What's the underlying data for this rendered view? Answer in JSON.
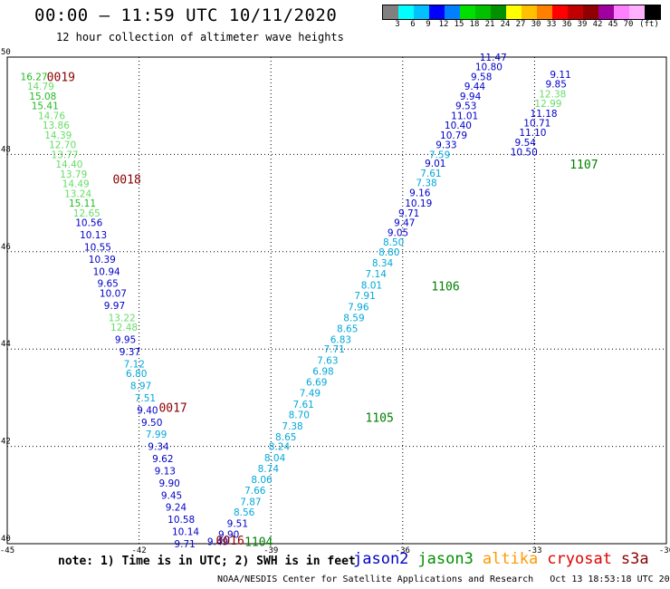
{
  "header": {
    "title": "00:00 – 11:59 UTC 10/11/2020",
    "subtitle": "12 hour collection of altimeter wave heights"
  },
  "legend": {
    "colors": [
      "#808080",
      "#00ffff",
      "#00c0ff",
      "#0000ff",
      "#0080ff",
      "#00e000",
      "#00c000",
      "#009000",
      "#ffff00",
      "#ffc000",
      "#ff8000",
      "#ff0000",
      "#c00000",
      "#900000",
      "#a000a0",
      "#ff80ff",
      "#ffb0ff",
      "#000000"
    ],
    "labels": [
      "3",
      "6",
      "9",
      "12",
      "15",
      "18",
      "21",
      "24",
      "27",
      "30",
      "33",
      "36",
      "39",
      "42",
      "45",
      "70",
      "(ft)"
    ]
  },
  "note": "note: 1) Time is in UTC; 2) SWH is in feet",
  "satellites": [
    {
      "name": "jason2",
      "color": "#0000c8"
    },
    {
      "name": "jason3",
      "color": "#009000"
    },
    {
      "name": "altika",
      "color": "#ff9900"
    },
    {
      "name": "cryosat",
      "color": "#e00000"
    },
    {
      "name": "s3a",
      "color": "#8b0000"
    }
  ],
  "footer": "NOAA/NESDIS Center for Satellite Applications and Research   Oct 13 18:53:18 UTC 2020",
  "chart_data": {
    "type": "scatter",
    "xlim": [
      -45,
      -30
    ],
    "ylim": [
      40,
      50
    ],
    "xticks": [
      -45,
      -42,
      -39,
      -36,
      -33,
      -30
    ],
    "yticks": [
      40,
      42,
      44,
      46,
      48,
      50
    ],
    "grid": true,
    "pass_labels": [
      {
        "text": "0019",
        "x": -44.1,
        "y": 49.6,
        "color": "#8b0000"
      },
      {
        "text": "0018",
        "x": -42.6,
        "y": 47.5,
        "color": "#8b0000"
      },
      {
        "text": "0017",
        "x": -41.55,
        "y": 42.8,
        "color": "#8b0000"
      },
      {
        "text": "0016",
        "x": -40.25,
        "y": 40.07,
        "color": "#8b0000"
      },
      {
        "text": "1104",
        "x": -39.6,
        "y": 40.05,
        "color": "#008000"
      },
      {
        "text": "1105",
        "x": -36.85,
        "y": 42.6,
        "color": "#008000"
      },
      {
        "text": "1106",
        "x": -35.35,
        "y": 45.3,
        "color": "#008000"
      },
      {
        "text": "1107",
        "x": -32.2,
        "y": 47.8,
        "color": "#008000"
      }
    ],
    "series": [
      {
        "name": "0019-0016",
        "points": [
          {
            "x": -44.7,
            "y": 49.6,
            "v": "16.27",
            "c": "#22bb22"
          },
          {
            "x": -44.55,
            "y": 49.4,
            "v": "14.79",
            "c": "#66dd66"
          },
          {
            "x": -44.5,
            "y": 49.2,
            "v": "15.08",
            "c": "#22bb22"
          },
          {
            "x": -44.45,
            "y": 49.0,
            "v": "15.41",
            "c": "#22bb22"
          },
          {
            "x": -44.3,
            "y": 48.8,
            "v": "14.76",
            "c": "#66dd66"
          },
          {
            "x": -44.2,
            "y": 48.6,
            "v": "13.86",
            "c": "#66dd66"
          },
          {
            "x": -44.15,
            "y": 48.4,
            "v": "14.39",
            "c": "#66dd66"
          },
          {
            "x": -44.05,
            "y": 48.2,
            "v": "12.70",
            "c": "#66dd66"
          },
          {
            "x": -44.0,
            "y": 48.0,
            "v": "13.77",
            "c": "#66dd66"
          },
          {
            "x": -43.9,
            "y": 47.8,
            "v": "14.40",
            "c": "#66dd66"
          },
          {
            "x": -43.8,
            "y": 47.6,
            "v": "13.79",
            "c": "#66dd66"
          },
          {
            "x": -43.75,
            "y": 47.4,
            "v": "14.49",
            "c": "#66dd66"
          },
          {
            "x": -43.7,
            "y": 47.2,
            "v": "13.24",
            "c": "#66dd66"
          },
          {
            "x": -43.6,
            "y": 47.0,
            "v": "15.11",
            "c": "#22bb22"
          },
          {
            "x": -43.5,
            "y": 46.8,
            "v": "12.65",
            "c": "#66dd66"
          },
          {
            "x": -43.45,
            "y": 46.6,
            "v": "10.56",
            "c": "#0000c8"
          },
          {
            "x": -43.35,
            "y": 46.35,
            "v": "10.13",
            "c": "#0000c8"
          },
          {
            "x": -43.25,
            "y": 46.1,
            "v": "10.55",
            "c": "#0000c8"
          },
          {
            "x": -43.15,
            "y": 45.85,
            "v": "10.39",
            "c": "#0000c8"
          },
          {
            "x": -43.05,
            "y": 45.6,
            "v": "10.94",
            "c": "#0000c8"
          },
          {
            "x": -42.95,
            "y": 45.35,
            "v": "9.65",
            "c": "#0000c8"
          },
          {
            "x": -42.9,
            "y": 45.15,
            "v": "10.07",
            "c": "#0000c8"
          },
          {
            "x": -42.8,
            "y": 44.9,
            "v": "9.97",
            "c": "#0000c8"
          },
          {
            "x": -42.7,
            "y": 44.65,
            "v": "13.22",
            "c": "#66dd66"
          },
          {
            "x": -42.65,
            "y": 44.45,
            "v": "12.48",
            "c": "#66dd66"
          },
          {
            "x": -42.55,
            "y": 44.2,
            "v": "9.95",
            "c": "#0000c8"
          },
          {
            "x": -42.45,
            "y": 43.95,
            "v": "9.37",
            "c": "#0000c8"
          },
          {
            "x": -42.35,
            "y": 43.7,
            "v": "7.12",
            "c": "#00a8d8"
          },
          {
            "x": -42.3,
            "y": 43.5,
            "v": "6.80",
            "c": "#00a8d8"
          },
          {
            "x": -42.2,
            "y": 43.25,
            "v": "8.97",
            "c": "#00a8d8"
          },
          {
            "x": -42.1,
            "y": 43.0,
            "v": "7.51",
            "c": "#00a8d8"
          },
          {
            "x": -42.05,
            "y": 42.75,
            "v": "9.40",
            "c": "#0000c8"
          },
          {
            "x": -41.95,
            "y": 42.5,
            "v": "9.50",
            "c": "#0000c8"
          },
          {
            "x": -41.85,
            "y": 42.25,
            "v": "7.99",
            "c": "#00a8d8"
          },
          {
            "x": -41.8,
            "y": 42.0,
            "v": "9.34",
            "c": "#0000c8"
          },
          {
            "x": -41.7,
            "y": 41.75,
            "v": "9.62",
            "c": "#0000c8"
          },
          {
            "x": -41.65,
            "y": 41.5,
            "v": "9.13",
            "c": "#0000c8"
          },
          {
            "x": -41.55,
            "y": 41.25,
            "v": "9.90",
            "c": "#0000c8"
          },
          {
            "x": -41.5,
            "y": 41.0,
            "v": "9.45",
            "c": "#0000c8"
          },
          {
            "x": -41.4,
            "y": 40.75,
            "v": "9.24",
            "c": "#0000c8"
          },
          {
            "x": -41.35,
            "y": 40.5,
            "v": "10.58",
            "c": "#0000c8"
          },
          {
            "x": -41.25,
            "y": 40.25,
            "v": "10.14",
            "c": "#0000c8"
          },
          {
            "x": -41.2,
            "y": 40.0,
            "v": "9.71",
            "c": "#0000c8"
          }
        ]
      },
      {
        "name": "1104-1107",
        "points": [
          {
            "x": -40.45,
            "y": 40.05,
            "v": "9.49",
            "c": "#0000c8"
          },
          {
            "x": -40.2,
            "y": 40.2,
            "v": "9.90",
            "c": "#0000c8"
          },
          {
            "x": -40.0,
            "y": 40.42,
            "v": "9.51",
            "c": "#0000c8"
          },
          {
            "x": -39.85,
            "y": 40.65,
            "v": "8.56",
            "c": "#00a8d8"
          },
          {
            "x": -39.7,
            "y": 40.87,
            "v": "7.87",
            "c": "#00a8d8"
          },
          {
            "x": -39.6,
            "y": 41.1,
            "v": "7.66",
            "c": "#00a8d8"
          },
          {
            "x": -39.45,
            "y": 41.32,
            "v": "8.06",
            "c": "#00a8d8"
          },
          {
            "x": -39.3,
            "y": 41.55,
            "v": "8.74",
            "c": "#00a8d8"
          },
          {
            "x": -39.15,
            "y": 41.77,
            "v": "8.04",
            "c": "#00a8d8"
          },
          {
            "x": -39.05,
            "y": 42.0,
            "v": "8.24",
            "c": "#00a8d8"
          },
          {
            "x": -38.9,
            "y": 42.2,
            "v": "8.65",
            "c": "#00a8d8"
          },
          {
            "x": -38.75,
            "y": 42.42,
            "v": "7.38",
            "c": "#00a8d8"
          },
          {
            "x": -38.6,
            "y": 42.65,
            "v": "8.70",
            "c": "#00a8d8"
          },
          {
            "x": -38.5,
            "y": 42.87,
            "v": "7.61",
            "c": "#00a8d8"
          },
          {
            "x": -38.35,
            "y": 43.1,
            "v": "7.49",
            "c": "#00a8d8"
          },
          {
            "x": -38.2,
            "y": 43.32,
            "v": "6.69",
            "c": "#00a8d8"
          },
          {
            "x": -38.05,
            "y": 43.55,
            "v": "6.98",
            "c": "#00a8d8"
          },
          {
            "x": -37.95,
            "y": 43.77,
            "v": "7.63",
            "c": "#00a8d8"
          },
          {
            "x": -37.8,
            "y": 44.0,
            "v": "7.71",
            "c": "#00a8d8"
          },
          {
            "x": -37.65,
            "y": 44.2,
            "v": "6.83",
            "c": "#00a8d8"
          },
          {
            "x": -37.5,
            "y": 44.42,
            "v": "8.65",
            "c": "#00a8d8"
          },
          {
            "x": -37.35,
            "y": 44.65,
            "v": "8.59",
            "c": "#00a8d8"
          },
          {
            "x": -37.25,
            "y": 44.87,
            "v": "7.96",
            "c": "#00a8d8"
          },
          {
            "x": -37.1,
            "y": 45.1,
            "v": "7.91",
            "c": "#00a8d8"
          },
          {
            "x": -36.95,
            "y": 45.32,
            "v": "8.01",
            "c": "#00a8d8"
          },
          {
            "x": -36.85,
            "y": 45.55,
            "v": "7.14",
            "c": "#00a8d8"
          },
          {
            "x": -36.7,
            "y": 45.77,
            "v": "8.34",
            "c": "#00a8d8"
          },
          {
            "x": -36.55,
            "y": 46.0,
            "v": "8.80",
            "c": "#00a8d8"
          },
          {
            "x": -36.45,
            "y": 46.2,
            "v": "8.50",
            "c": "#00a8d8"
          },
          {
            "x": -36.35,
            "y": 46.4,
            "v": "9.05",
            "c": "#0000c8"
          },
          {
            "x": -36.2,
            "y": 46.6,
            "v": "9.47",
            "c": "#0000c8"
          },
          {
            "x": -36.1,
            "y": 46.8,
            "v": "9.71",
            "c": "#0000c8"
          },
          {
            "x": -35.95,
            "y": 47.0,
            "v": "10.19",
            "c": "#0000c8"
          },
          {
            "x": -35.85,
            "y": 47.22,
            "v": "9.16",
            "c": "#0000c8"
          },
          {
            "x": -35.7,
            "y": 47.42,
            "v": "7.38",
            "c": "#00a8d8"
          },
          {
            "x": -35.6,
            "y": 47.62,
            "v": "7.61",
            "c": "#00a8d8"
          },
          {
            "x": -35.5,
            "y": 47.82,
            "v": "9.01",
            "c": "#0000c8"
          },
          {
            "x": -35.4,
            "y": 48.0,
            "v": "7.59",
            "c": "#00a8d8"
          },
          {
            "x": -35.25,
            "y": 48.2,
            "v": "9.33",
            "c": "#0000c8"
          },
          {
            "x": -35.15,
            "y": 48.4,
            "v": "10.79",
            "c": "#0000c8"
          },
          {
            "x": -35.05,
            "y": 48.6,
            "v": "10.40",
            "c": "#0000c8"
          },
          {
            "x": -34.9,
            "y": 48.8,
            "v": "11.01",
            "c": "#0000c8"
          },
          {
            "x": -34.8,
            "y": 49.0,
            "v": "9.53",
            "c": "#0000c8"
          },
          {
            "x": -34.7,
            "y": 49.2,
            "v": "9.94",
            "c": "#0000c8"
          },
          {
            "x": -34.6,
            "y": 49.4,
            "v": "9.44",
            "c": "#0000c8"
          },
          {
            "x": -34.45,
            "y": 49.6,
            "v": "9.58",
            "c": "#0000c8"
          },
          {
            "x": -34.35,
            "y": 49.8,
            "v": "10.80",
            "c": "#0000c8"
          },
          {
            "x": -34.25,
            "y": 50.0,
            "v": "11.47",
            "c": "#0000c8"
          }
        ]
      },
      {
        "name": "1107-upper",
        "points": [
          {
            "x": -33.55,
            "y": 48.05,
            "v": "10.50",
            "c": "#0000c8"
          },
          {
            "x": -33.45,
            "y": 48.25,
            "v": "9.54",
            "c": "#0000c8"
          },
          {
            "x": -33.35,
            "y": 48.45,
            "v": "11.10",
            "c": "#0000c8"
          },
          {
            "x": -33.25,
            "y": 48.65,
            "v": "10.71",
            "c": "#0000c8"
          },
          {
            "x": -33.1,
            "y": 48.85,
            "v": "11.18",
            "c": "#0000c8"
          },
          {
            "x": -33.0,
            "y": 49.05,
            "v": "12.99",
            "c": "#66dd66"
          },
          {
            "x": -32.9,
            "y": 49.25,
            "v": "12.38",
            "c": "#66dd66"
          },
          {
            "x": -32.75,
            "y": 49.45,
            "v": "9.85",
            "c": "#0000c8"
          },
          {
            "x": -32.65,
            "y": 49.65,
            "v": "9.11",
            "c": "#0000c8"
          }
        ]
      }
    ]
  }
}
